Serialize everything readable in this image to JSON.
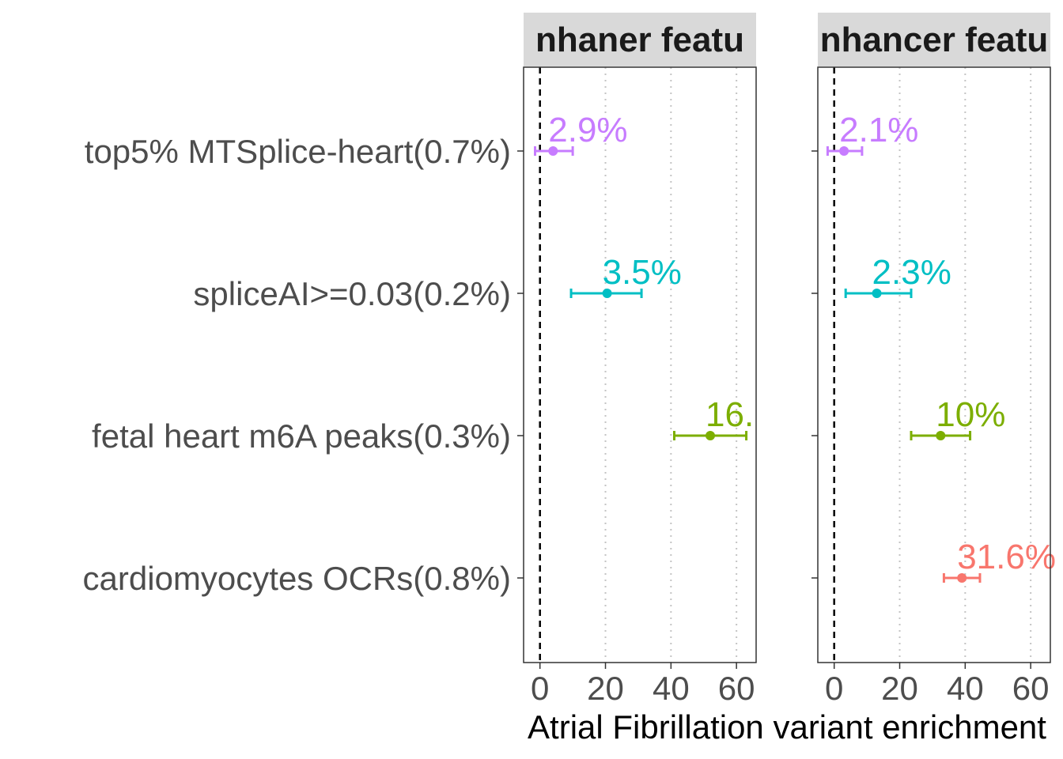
{
  "chart_data": {
    "type": "scatter",
    "subtype": "forest-plot",
    "xlabel": "Atrial Fibrillation variant enrichment",
    "ylabel": "",
    "xlim": [
      -5,
      66
    ],
    "xticks": [
      0,
      20,
      40,
      60
    ],
    "reference_line_x": 0,
    "grid": "vertical dotted at major ticks",
    "legend": "none",
    "categories": [
      "top5% MTSplice-heart(0.7%)",
      "spliceAI>=0.03(0.2%)",
      "fetal heart m6A peaks(0.3%)",
      "cardiomyocytes OCRs(0.8%)"
    ],
    "colors": {
      "top5% MTSplice-heart(0.7%)": "#c77cff",
      "spliceAI>=0.03(0.2%)": "#00bfc4",
      "fetal heart m6A peaks(0.3%)": "#7cae00",
      "cardiomyocytes OCRs(0.8%)": "#f8766d"
    },
    "panels": [
      {
        "strip": "nhaner featu",
        "points": [
          {
            "category": "top5% MTSplice-heart(0.7%)",
            "estimate": 4,
            "low": -1.5,
            "high": 10,
            "label": "2.9%"
          },
          {
            "category": "spliceAI>=0.03(0.2%)",
            "estimate": 20.5,
            "low": 9.5,
            "high": 31,
            "label": "3.5%"
          },
          {
            "category": "fetal heart m6A peaks(0.3%)",
            "estimate": 52,
            "low": 41,
            "high": 63,
            "label": "16."
          }
        ]
      },
      {
        "strip": "nhancer featu",
        "points": [
          {
            "category": "top5% MTSplice-heart(0.7%)",
            "estimate": 3,
            "low": -2,
            "high": 8.5,
            "label": "2.1%"
          },
          {
            "category": "spliceAI>=0.03(0.2%)",
            "estimate": 13,
            "low": 3.5,
            "high": 23.5,
            "label": "2.3%"
          },
          {
            "category": "fetal heart m6A peaks(0.3%)",
            "estimate": 32.5,
            "low": 23.5,
            "high": 41.5,
            "label": "10%"
          },
          {
            "category": "cardiomyocytes OCRs(0.8%)",
            "estimate": 39,
            "low": 33.5,
            "high": 44.5,
            "label": "31.6%"
          }
        ]
      }
    ]
  }
}
